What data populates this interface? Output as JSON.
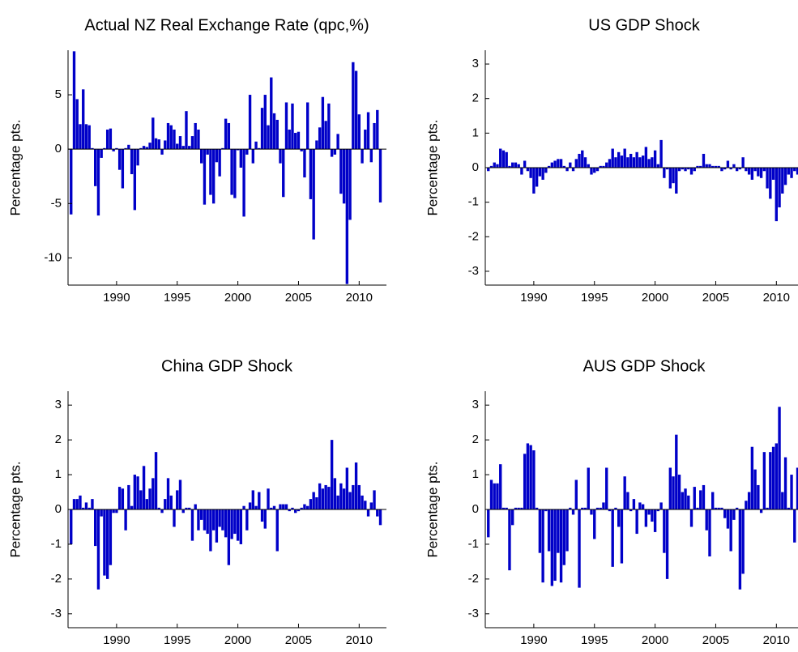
{
  "chart_data": [
    {
      "type": "bar",
      "title": "Actual NZ Real Exchange Rate (qpc,%)",
      "y_label": "Percentage pts.",
      "color": "#0000c8",
      "xlim": [
        1986,
        2012.25
      ],
      "ylim": [
        -12.5,
        9.1
      ],
      "xticks": [
        1990,
        1995,
        2000,
        2005,
        2010
      ],
      "yticks": [
        -10,
        -5,
        0,
        5
      ],
      "x": [
        1986.25,
        1986.5,
        1986.75,
        1987,
        1987.25,
        1987.5,
        1987.75,
        1988,
        1988.25,
        1988.5,
        1988.75,
        1989,
        1989.25,
        1989.5,
        1989.75,
        1990,
        1990.25,
        1990.5,
        1990.75,
        1991,
        1991.25,
        1991.5,
        1991.75,
        1992,
        1992.25,
        1992.5,
        1992.75,
        1993,
        1993.25,
        1993.5,
        1993.75,
        1994,
        1994.25,
        1994.5,
        1994.75,
        1995,
        1995.25,
        1995.5,
        1995.75,
        1996,
        1996.25,
        1996.5,
        1996.75,
        1997,
        1997.25,
        1997.5,
        1997.75,
        1998,
        1998.25,
        1998.5,
        1998.75,
        1999,
        1999.25,
        1999.5,
        1999.75,
        2000,
        2000.25,
        2000.5,
        2000.75,
        2001,
        2001.25,
        2001.5,
        2001.75,
        2002,
        2002.25,
        2002.5,
        2002.75,
        2003,
        2003.25,
        2003.5,
        2003.75,
        2004,
        2004.25,
        2004.5,
        2004.75,
        2005,
        2005.25,
        2005.5,
        2005.75,
        2006,
        2006.25,
        2006.5,
        2006.75,
        2007,
        2007.25,
        2007.5,
        2007.75,
        2008,
        2008.25,
        2008.5,
        2008.75,
        2009,
        2009.25,
        2009.5,
        2009.75,
        2010,
        2010.25,
        2010.5,
        2010.75,
        2011,
        2011.25,
        2011.5,
        2011.75
      ],
      "values": [
        -6,
        9,
        4.6,
        2.3,
        5.5,
        2.3,
        2.2,
        0.1,
        -3.4,
        -6.1,
        -0.8,
        0.1,
        1.8,
        1.9,
        -0.2,
        0.1,
        -1.9,
        -3.6,
        0.1,
        0.4,
        -2.3,
        -5.6,
        -1.5,
        0.1,
        0.3,
        0.2,
        0.6,
        2.9,
        1.0,
        0.9,
        -0.5,
        0.8,
        2.4,
        2.2,
        1.8,
        0.5,
        1.2,
        0.3,
        3.5,
        0.3,
        1.2,
        2.4,
        1.8,
        -1.3,
        -5.1,
        -0.5,
        -4.2,
        -5.0,
        -1.2,
        -2.5,
        0.1,
        2.8,
        2.4,
        -4.2,
        -4.5,
        -0.1,
        -1.7,
        -6.2,
        -0.5,
        5.0,
        -1.3,
        0.7,
        0.1,
        3.8,
        5.0,
        2.2,
        6.6,
        3.3,
        2.7,
        -1.3,
        -4.4,
        4.3,
        1.8,
        4.2,
        1.5,
        1.6,
        -0.2,
        -2.6,
        4.3,
        -4.6,
        -8.3,
        0.8,
        2.0,
        4.8,
        2.6,
        4.2,
        -0.7,
        -0.5,
        1.4,
        -4.1,
        -5.0,
        -12.4,
        -6.5,
        8.0,
        7.2,
        3.2,
        -1.3,
        1.8,
        3.4,
        -1.2,
        2.4,
        3.6,
        -4.9
      ]
    },
    {
      "type": "bar",
      "title": "US GDP Shock",
      "y_label": "Percentage pts.",
      "color": "#0000c8",
      "xlim": [
        1986,
        2012.25
      ],
      "ylim": [
        -3.4,
        3.4
      ],
      "xticks": [
        1990,
        1995,
        2000,
        2005,
        2010
      ],
      "yticks": [
        -3,
        -2,
        -1,
        0,
        1,
        2,
        3
      ],
      "x": [
        1986.25,
        1986.5,
        1986.75,
        1987,
        1987.25,
        1987.5,
        1987.75,
        1988,
        1988.25,
        1988.5,
        1988.75,
        1989,
        1989.25,
        1989.5,
        1989.75,
        1990,
        1990.25,
        1990.5,
        1990.75,
        1991,
        1991.25,
        1991.5,
        1991.75,
        1992,
        1992.25,
        1992.5,
        1992.75,
        1993,
        1993.25,
        1993.5,
        1993.75,
        1994,
        1994.25,
        1994.5,
        1994.75,
        1995,
        1995.25,
        1995.5,
        1995.75,
        1996,
        1996.25,
        1996.5,
        1996.75,
        1997,
        1997.25,
        1997.5,
        1997.75,
        1998,
        1998.25,
        1998.5,
        1998.75,
        1999,
        1999.25,
        1999.5,
        1999.75,
        2000,
        2000.25,
        2000.5,
        2000.75,
        2001,
        2001.25,
        2001.5,
        2001.75,
        2002,
        2002.25,
        2002.5,
        2002.75,
        2003,
        2003.25,
        2003.5,
        2003.75,
        2004,
        2004.25,
        2004.5,
        2004.75,
        2005,
        2005.25,
        2005.5,
        2005.75,
        2006,
        2006.25,
        2006.5,
        2006.75,
        2007,
        2007.25,
        2007.5,
        2007.75,
        2008,
        2008.25,
        2008.5,
        2008.75,
        2009,
        2009.25,
        2009.5,
        2009.75,
        2010,
        2010.25,
        2010.5,
        2010.75,
        2011,
        2011.25,
        2011.5,
        2011.75
      ],
      "values": [
        -0.1,
        0.05,
        0.15,
        0.1,
        0.55,
        0.5,
        0.45,
        0.05,
        0.15,
        0.15,
        0.1,
        -0.2,
        0.2,
        -0.1,
        -0.3,
        -0.75,
        -0.55,
        -0.25,
        -0.35,
        -0.15,
        0.05,
        0.15,
        0.2,
        0.25,
        0.25,
        0.05,
        -0.1,
        0.15,
        -0.1,
        0.25,
        0.4,
        0.5,
        0.3,
        0.1,
        -0.2,
        -0.15,
        -0.1,
        0.05,
        0.05,
        0.15,
        0.25,
        0.55,
        0.3,
        0.45,
        0.35,
        0.55,
        0.3,
        0.4,
        0.3,
        0.45,
        0.3,
        0.35,
        0.6,
        0.25,
        0.3,
        0.5,
        0.1,
        0.8,
        -0.3,
        -0.05,
        -0.6,
        -0.45,
        -0.75,
        -0.1,
        -0.05,
        -0.1,
        -0.05,
        -0.2,
        -0.1,
        0.05,
        0.05,
        0.4,
        0.1,
        0.1,
        0.05,
        0.05,
        0.05,
        -0.1,
        -0.05,
        0.2,
        -0.05,
        0.1,
        -0.1,
        -0.05,
        0.3,
        -0.1,
        -0.2,
        -0.35,
        -0.1,
        -0.25,
        -0.3,
        -0.1,
        -0.6,
        -0.9,
        -0.35,
        -1.55,
        -1.15,
        -0.75,
        -0.5,
        -0.2,
        -0.3,
        -0.1,
        -0.2
      ]
    },
    {
      "type": "bar",
      "title": "China GDP Shock",
      "y_label": "Percentage pts.",
      "color": "#0000c8",
      "xlim": [
        1986,
        2012.25
      ],
      "ylim": [
        -3.4,
        3.4
      ],
      "xticks": [
        1990,
        1995,
        2000,
        2005,
        2010
      ],
      "yticks": [
        -3,
        -2,
        -1,
        0,
        1,
        2,
        3
      ],
      "x": [
        1986.25,
        1986.5,
        1986.75,
        1987,
        1987.25,
        1987.5,
        1987.75,
        1988,
        1988.25,
        1988.5,
        1988.75,
        1989,
        1989.25,
        1989.5,
        1989.75,
        1990,
        1990.25,
        1990.5,
        1990.75,
        1991,
        1991.25,
        1991.5,
        1991.75,
        1992,
        1992.25,
        1992.5,
        1992.75,
        1993,
        1993.25,
        1993.5,
        1993.75,
        1994,
        1994.25,
        1994.5,
        1994.75,
        1995,
        1995.25,
        1995.5,
        1995.75,
        1996,
        1996.25,
        1996.5,
        1996.75,
        1997,
        1997.25,
        1997.5,
        1997.75,
        1998,
        1998.25,
        1998.5,
        1998.75,
        1999,
        1999.25,
        1999.5,
        1999.75,
        2000,
        2000.25,
        2000.5,
        2000.75,
        2001,
        2001.25,
        2001.5,
        2001.75,
        2002,
        2002.25,
        2002.5,
        2002.75,
        2003,
        2003.25,
        2003.5,
        2003.75,
        2004,
        2004.25,
        2004.5,
        2004.75,
        2005,
        2005.25,
        2005.5,
        2005.75,
        2006,
        2006.25,
        2006.5,
        2006.75,
        2007,
        2007.25,
        2007.5,
        2007.75,
        2008,
        2008.25,
        2008.5,
        2008.75,
        2009,
        2009.25,
        2009.5,
        2009.75,
        2010,
        2010.25,
        2010.5,
        2010.75,
        2011,
        2011.25,
        2011.5,
        2011.75
      ],
      "values": [
        -1.0,
        0.3,
        0.3,
        0.4,
        0.05,
        0.2,
        0.05,
        0.3,
        -1.05,
        -2.3,
        -0.2,
        -1.9,
        -2.0,
        -1.6,
        -0.1,
        -0.1,
        0.65,
        0.6,
        -0.6,
        0.7,
        0.1,
        1.0,
        0.95,
        0.55,
        1.25,
        0.3,
        0.6,
        0.9,
        1.65,
        0.05,
        -0.1,
        0.3,
        0.9,
        0.4,
        -0.5,
        0.55,
        0.85,
        -0.1,
        0.05,
        0.05,
        -0.9,
        0.15,
        -0.6,
        -0.3,
        -0.6,
        -0.7,
        -1.2,
        -0.6,
        -0.95,
        -0.5,
        -0.6,
        -0.8,
        -1.6,
        -0.85,
        -0.7,
        -0.9,
        -1.0,
        0.1,
        -0.6,
        0.2,
        0.55,
        0.1,
        0.5,
        -0.35,
        -0.55,
        0.6,
        0.05,
        0.1,
        -1.2,
        0.15,
        0.15,
        0.15,
        -0.05,
        0.05,
        -0.1,
        -0.05,
        0.05,
        0.15,
        0.1,
        0.3,
        0.5,
        0.35,
        0.75,
        0.6,
        0.7,
        0.65,
        2.0,
        0.9,
        0.4,
        0.75,
        0.6,
        1.2,
        0.5,
        0.7,
        1.35,
        0.7,
        0.4,
        0.25,
        -0.2,
        0.2,
        0.55,
        -0.2,
        -0.45
      ]
    },
    {
      "type": "bar",
      "title": "AUS GDP Shock",
      "y_label": "Percentage pts.",
      "color": "#0000c8",
      "xlim": [
        1986,
        2012.25
      ],
      "ylim": [
        -3.4,
        3.4
      ],
      "xticks": [
        1990,
        1995,
        2000,
        2005,
        2010
      ],
      "yticks": [
        -3,
        -2,
        -1,
        0,
        1,
        2,
        3
      ],
      "x": [
        1986.25,
        1986.5,
        1986.75,
        1987,
        1987.25,
        1987.5,
        1987.75,
        1988,
        1988.25,
        1988.5,
        1988.75,
        1989,
        1989.25,
        1989.5,
        1989.75,
        1990,
        1990.25,
        1990.5,
        1990.75,
        1991,
        1991.25,
        1991.5,
        1991.75,
        1992,
        1992.25,
        1992.5,
        1992.75,
        1993,
        1993.25,
        1993.5,
        1993.75,
        1994,
        1994.25,
        1994.5,
        1994.75,
        1995,
        1995.25,
        1995.5,
        1995.75,
        1996,
        1996.25,
        1996.5,
        1996.75,
        1997,
        1997.25,
        1997.5,
        1997.75,
        1998,
        1998.25,
        1998.5,
        1998.75,
        1999,
        1999.25,
        1999.5,
        1999.75,
        2000,
        2000.25,
        2000.5,
        2000.75,
        2001,
        2001.25,
        2001.5,
        2001.75,
        2002,
        2002.25,
        2002.5,
        2002.75,
        2003,
        2003.25,
        2003.5,
        2003.75,
        2004,
        2004.25,
        2004.5,
        2004.75,
        2005,
        2005.25,
        2005.5,
        2005.75,
        2006,
        2006.25,
        2006.5,
        2006.75,
        2007,
        2007.25,
        2007.5,
        2007.75,
        2008,
        2008.25,
        2008.5,
        2008.75,
        2009,
        2009.25,
        2009.5,
        2009.75,
        2010,
        2010.25,
        2010.5,
        2010.75,
        2011,
        2011.25,
        2011.5,
        2011.75
      ],
      "values": [
        -0.8,
        0.85,
        0.75,
        0.75,
        1.3,
        0.05,
        0.05,
        -1.75,
        -0.45,
        0.05,
        0.05,
        0.05,
        1.6,
        1.9,
        1.85,
        1.7,
        0.05,
        -1.25,
        -2.1,
        -0.05,
        -1.2,
        -2.2,
        -2.05,
        -1.25,
        -2.1,
        -1.6,
        -1.2,
        0.05,
        -0.15,
        0.85,
        -2.25,
        0.05,
        0.05,
        1.2,
        -0.15,
        -0.85,
        0.05,
        0.05,
        0.2,
        1.2,
        -0.05,
        -1.65,
        0.05,
        -0.5,
        -1.55,
        0.95,
        0.5,
        -0.05,
        0.3,
        -0.7,
        0.2,
        0.15,
        -0.5,
        -0.15,
        -0.35,
        -0.65,
        -0.05,
        0.2,
        -1.25,
        -2.0,
        1.2,
        0.95,
        2.15,
        1.0,
        0.5,
        0.6,
        0.4,
        -0.5,
        0.65,
        0.05,
        0.55,
        0.7,
        -0.6,
        -1.35,
        0.5,
        0.05,
        0.05,
        0.05,
        -0.25,
        -0.55,
        -1.2,
        -0.3,
        0.05,
        -2.3,
        -1.85,
        0.25,
        0.5,
        1.8,
        1.15,
        0.7,
        -0.1,
        1.65,
        0.05,
        1.65,
        1.8,
        1.9,
        2.95,
        0.5,
        1.5,
        0.05,
        1.0,
        -0.95,
        1.2
      ]
    }
  ]
}
